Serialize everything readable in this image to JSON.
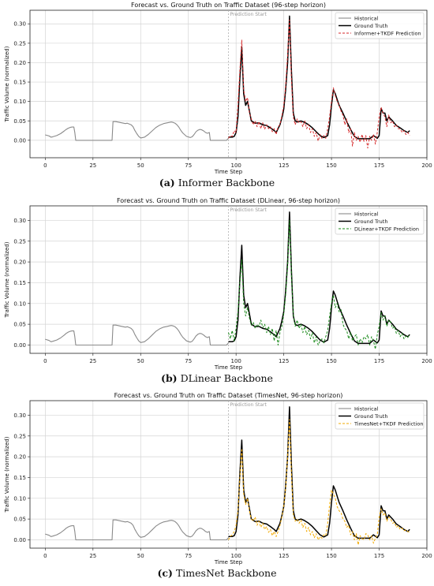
{
  "chart_data": [
    {
      "type": "line",
      "title": "Forecast vs. Ground Truth on Traffic Dataset (96-step horizon)",
      "xlabel": "Time Step",
      "ylabel": "Traffic Volume (normalized)",
      "xlim": [
        -8,
        200
      ],
      "ylim": [
        -0.045,
        0.335
      ],
      "xticks": [
        0,
        25,
        50,
        75,
        100,
        125,
        150,
        175,
        200
      ],
      "yticks": [
        0.0,
        0.05,
        0.1,
        0.15,
        0.2,
        0.25,
        0.3
      ],
      "grid": true,
      "legend": "top-right",
      "annotation": "Prediction Start",
      "annotation_x": 96,
      "caption_letter": "(a)",
      "caption_text": "Informer Backbone",
      "series": [
        {
          "name": "Historical",
          "style": "solid",
          "color": "#8a8a8a"
        },
        {
          "name": "Ground Truth",
          "style": "solid",
          "color": "#000000"
        },
        {
          "name": "Informer+TKDF Prediction",
          "style": "dashed",
          "color": "#d62728"
        }
      ],
      "prediction_key": "informer"
    },
    {
      "type": "line",
      "title": "Forecast vs. Ground Truth on Traffic Dataset (DLinear, 96-step horizon)",
      "xlabel": "Time Step",
      "ylabel": "Traffic Volume (normalized)",
      "xlim": [
        -8,
        200
      ],
      "ylim": [
        -0.02,
        0.335
      ],
      "xticks": [
        0,
        25,
        50,
        75,
        100,
        125,
        150,
        175,
        200
      ],
      "yticks": [
        0.0,
        0.05,
        0.1,
        0.15,
        0.2,
        0.25,
        0.3
      ],
      "grid": true,
      "legend": "top-right",
      "annotation": "Prediction Start",
      "annotation_x": 96,
      "caption_letter": "(b)",
      "caption_text": "DLinear Backbone",
      "series": [
        {
          "name": "Historical",
          "style": "solid",
          "color": "#8a8a8a"
        },
        {
          "name": "Ground Truth",
          "style": "solid",
          "color": "#000000"
        },
        {
          "name": "DLinear+TKDF Prediction",
          "style": "dashed",
          "color": "#1a8a1a"
        }
      ],
      "prediction_key": "dlinear"
    },
    {
      "type": "line",
      "title": "Forecast vs. Ground Truth on Traffic Dataset (TimesNet, 96-step horizon)",
      "xlabel": "Time Step",
      "ylabel": "Traffic Volume (normalized)",
      "xlim": [
        -8,
        200
      ],
      "ylim": [
        -0.02,
        0.335
      ],
      "xticks": [
        0,
        25,
        50,
        75,
        100,
        125,
        150,
        175,
        200
      ],
      "yticks": [
        0.0,
        0.05,
        0.1,
        0.15,
        0.2,
        0.25,
        0.3
      ],
      "grid": true,
      "legend": "top-right",
      "annotation": "Prediction Start",
      "annotation_x": 96,
      "caption_letter": "(c)",
      "caption_text": "TimesNet Backbone",
      "series": [
        {
          "name": "Historical",
          "style": "solid",
          "color": "#8a8a8a"
        },
        {
          "name": "Ground Truth",
          "style": "solid",
          "color": "#000000"
        },
        {
          "name": "TimesNet+TKDF Prediction",
          "style": "dashed",
          "color": "#f2a900"
        }
      ],
      "prediction_key": "timesnet"
    }
  ],
  "historical": {
    "x": [
      0,
      2,
      3,
      4,
      6,
      8,
      10,
      11,
      12,
      13,
      14,
      15,
      15.5,
      16,
      20,
      25,
      30,
      35,
      35.5,
      37,
      38,
      40,
      41,
      42,
      43,
      44,
      45,
      46,
      47,
      48,
      49,
      50,
      52,
      54,
      56,
      58,
      60,
      62,
      64,
      65,
      66,
      67,
      68,
      69,
      70,
      71,
      72,
      74,
      76,
      77,
      78,
      79,
      80,
      81,
      82,
      83,
      84,
      85,
      86,
      86.5,
      87,
      90,
      95,
      96
    ],
    "y": [
      0.014,
      0.011,
      0.008,
      0.009,
      0.012,
      0.017,
      0.024,
      0.028,
      0.031,
      0.033,
      0.034,
      0.034,
      0.02,
      0.0,
      0.0,
      0.0,
      0.0,
      0.0,
      0.048,
      0.048,
      0.047,
      0.045,
      0.044,
      0.043,
      0.044,
      0.042,
      0.04,
      0.035,
      0.025,
      0.017,
      0.01,
      0.006,
      0.008,
      0.015,
      0.024,
      0.033,
      0.039,
      0.043,
      0.045,
      0.046,
      0.047,
      0.046,
      0.044,
      0.04,
      0.034,
      0.026,
      0.019,
      0.01,
      0.007,
      0.009,
      0.015,
      0.022,
      0.026,
      0.028,
      0.027,
      0.024,
      0.02,
      0.018,
      0.02,
      0.0,
      0.0,
      0.0,
      0.0,
      0.005
    ]
  },
  "ground_truth": {
    "x": [
      96,
      98,
      99,
      100,
      101,
      102,
      103,
      104,
      105,
      106,
      107,
      108,
      110,
      112,
      114,
      116,
      118,
      120,
      121,
      122,
      123,
      124,
      125,
      126,
      127,
      128,
      129,
      130,
      131,
      132,
      134,
      136,
      138,
      140,
      142,
      144,
      146,
      148,
      149,
      150,
      151,
      152,
      153,
      154,
      156,
      158,
      160,
      162,
      164,
      166,
      168,
      170,
      172,
      174,
      175,
      176,
      177,
      178,
      179,
      180,
      182,
      184,
      186,
      188,
      190,
      191
    ],
    "y": [
      0.008,
      0.008,
      0.01,
      0.02,
      0.06,
      0.16,
      0.24,
      0.12,
      0.09,
      0.1,
      0.075,
      0.05,
      0.044,
      0.045,
      0.04,
      0.038,
      0.032,
      0.025,
      0.02,
      0.03,
      0.04,
      0.058,
      0.08,
      0.13,
      0.2,
      0.32,
      0.18,
      0.07,
      0.05,
      0.047,
      0.05,
      0.046,
      0.04,
      0.032,
      0.022,
      0.012,
      0.007,
      0.012,
      0.04,
      0.09,
      0.13,
      0.12,
      0.105,
      0.09,
      0.07,
      0.048,
      0.028,
      0.01,
      0.004,
      0.004,
      0.004,
      0.004,
      0.012,
      0.005,
      0.012,
      0.082,
      0.07,
      0.07,
      0.05,
      0.06,
      0.05,
      0.038,
      0.032,
      0.025,
      0.02,
      0.025
    ]
  },
  "predictions": {
    "informer": {
      "x": [
        96,
        97,
        98,
        99,
        100,
        101,
        102,
        103,
        104,
        105,
        106,
        107,
        108,
        109,
        110,
        111,
        112,
        113,
        114,
        115,
        116,
        117,
        118,
        119,
        120,
        121,
        122,
        123,
        124,
        125,
        126,
        127,
        128,
        129,
        130,
        131,
        132,
        133,
        134,
        135,
        136,
        137,
        138,
        139,
        140,
        141,
        142,
        143,
        144,
        145,
        146,
        147,
        148,
        149,
        150,
        151,
        152,
        153,
        154,
        155,
        156,
        157,
        158,
        159,
        160,
        161,
        162,
        163,
        164,
        165,
        166,
        167,
        168,
        169,
        170,
        171,
        172,
        173,
        174,
        175,
        176,
        177,
        178,
        179,
        180,
        181,
        182,
        183,
        184,
        185,
        186,
        187,
        188,
        189,
        190,
        191
      ],
      "y": [
        0.005,
        0.012,
        0.01,
        0.025,
        0.02,
        0.09,
        0.18,
        0.258,
        0.13,
        0.1,
        0.11,
        0.07,
        0.055,
        0.04,
        0.05,
        0.035,
        0.048,
        0.03,
        0.045,
        0.028,
        0.04,
        0.03,
        0.035,
        0.022,
        0.03,
        0.015,
        0.035,
        0.04,
        0.062,
        0.09,
        0.14,
        0.22,
        0.31,
        0.16,
        0.06,
        0.04,
        0.055,
        0.045,
        0.048,
        0.035,
        0.05,
        0.03,
        0.04,
        0.02,
        0.03,
        0.01,
        0.02,
        -0.002,
        0.015,
        0.005,
        0.012,
        0.005,
        0.03,
        0.06,
        0.1,
        0.135,
        0.115,
        0.1,
        0.09,
        0.075,
        0.065,
        0.04,
        0.055,
        0.02,
        0.03,
        -0.015,
        0.02,
        0.0,
        0.01,
        -0.005,
        0.015,
        -0.003,
        0.012,
        -0.02,
        0.01,
        0.0,
        0.015,
        -0.01,
        0.02,
        0.06,
        0.085,
        0.07,
        0.06,
        0.035,
        0.065,
        0.045,
        0.05,
        0.035,
        0.04,
        0.03,
        0.03,
        0.02,
        0.025,
        0.015,
        0.02,
        0.012
      ]
    },
    "dlinear": {
      "x": [
        96,
        97,
        98,
        99,
        100,
        101,
        102,
        103,
        104,
        105,
        106,
        107,
        108,
        109,
        110,
        111,
        112,
        113,
        114,
        115,
        116,
        117,
        118,
        119,
        120,
        121,
        122,
        123,
        124,
        125,
        126,
        127,
        128,
        129,
        130,
        131,
        132,
        133,
        134,
        135,
        136,
        137,
        138,
        139,
        140,
        141,
        142,
        143,
        144,
        145,
        146,
        147,
        148,
        149,
        150,
        151,
        152,
        153,
        154,
        155,
        156,
        157,
        158,
        159,
        160,
        161,
        162,
        163,
        164,
        165,
        166,
        167,
        168,
        169,
        170,
        171,
        172,
        173,
        174,
        175,
        176,
        177,
        178,
        179,
        180,
        181,
        182,
        183,
        184,
        185,
        186,
        187,
        188,
        189,
        190,
        191
      ],
      "y": [
        0.03,
        0.015,
        0.035,
        0.01,
        0.04,
        0.08,
        0.15,
        0.205,
        0.1,
        0.07,
        0.09,
        0.065,
        0.048,
        0.055,
        0.04,
        0.05,
        0.045,
        0.06,
        0.042,
        0.05,
        0.03,
        0.045,
        0.025,
        0.04,
        0.01,
        0.035,
        0.0,
        0.03,
        0.045,
        0.075,
        0.12,
        0.19,
        0.3,
        0.17,
        0.075,
        0.045,
        0.06,
        0.04,
        0.05,
        0.03,
        0.045,
        0.025,
        0.035,
        0.015,
        0.03,
        0.005,
        0.02,
        0.0,
        0.01,
        0.015,
        0.005,
        0.02,
        0.035,
        0.07,
        0.1,
        0.12,
        0.09,
        0.1,
        0.08,
        0.085,
        0.05,
        0.04,
        0.035,
        0.015,
        0.03,
        0.01,
        0.02,
        0.025,
        0.0,
        0.015,
        0.005,
        0.02,
        0.015,
        0.025,
        0.0,
        0.02,
        0.01,
        -0.01,
        0.025,
        0.045,
        0.078,
        0.06,
        0.07,
        0.045,
        0.06,
        0.055,
        0.04,
        0.045,
        0.028,
        0.035,
        0.02,
        0.028,
        0.015,
        0.022,
        0.018,
        0.026
      ]
    },
    "timesnet": {
      "x": [
        96,
        97,
        98,
        99,
        100,
        101,
        102,
        103,
        104,
        105,
        106,
        107,
        108,
        109,
        110,
        111,
        112,
        113,
        114,
        115,
        116,
        117,
        118,
        119,
        120,
        121,
        122,
        123,
        124,
        125,
        126,
        127,
        128,
        129,
        130,
        131,
        132,
        133,
        134,
        135,
        136,
        137,
        138,
        139,
        140,
        141,
        142,
        143,
        144,
        145,
        146,
        147,
        148,
        149,
        150,
        151,
        152,
        153,
        154,
        155,
        156,
        157,
        158,
        159,
        160,
        161,
        162,
        163,
        164,
        165,
        166,
        167,
        168,
        169,
        170,
        171,
        172,
        173,
        174,
        175,
        176,
        177,
        178,
        179,
        180,
        181,
        182,
        183,
        184,
        185,
        186,
        187,
        188,
        189,
        190,
        191
      ],
      "y": [
        0.0,
        0.008,
        0.012,
        0.02,
        0.035,
        0.07,
        0.15,
        0.22,
        0.11,
        0.085,
        0.1,
        0.07,
        0.05,
        0.045,
        0.055,
        0.035,
        0.045,
        0.03,
        0.04,
        0.025,
        0.032,
        0.018,
        0.025,
        0.01,
        0.02,
        0.008,
        0.02,
        0.035,
        0.055,
        0.08,
        0.125,
        0.2,
        0.29,
        0.16,
        0.06,
        0.045,
        0.05,
        0.04,
        0.048,
        0.03,
        0.04,
        0.02,
        0.03,
        0.012,
        0.02,
        0.005,
        0.015,
        0.0,
        0.008,
        0.004,
        0.012,
        0.01,
        0.04,
        0.085,
        0.12,
        0.11,
        0.1,
        0.08,
        0.07,
        0.065,
        0.05,
        0.045,
        0.03,
        0.035,
        0.012,
        0.02,
        0.0,
        0.015,
        -0.012,
        0.01,
        0.003,
        0.0,
        0.015,
        0.012,
        0.0,
        0.01,
        -0.008,
        0.004,
        0.012,
        0.055,
        0.075,
        0.06,
        0.065,
        0.045,
        0.055,
        0.05,
        0.04,
        0.042,
        0.03,
        0.034,
        0.025,
        0.028,
        0.022,
        0.024,
        0.02,
        0.018
      ]
    }
  }
}
